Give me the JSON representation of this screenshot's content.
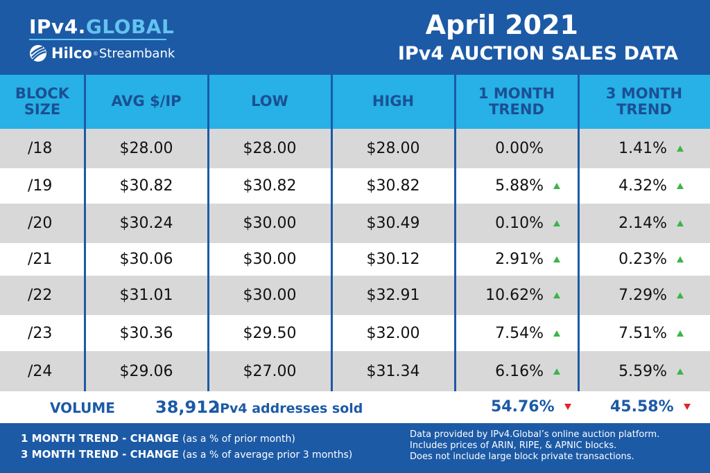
{
  "brand": {
    "name_prefix": "IPv4.",
    "name_accent": "GLOBAL",
    "partner_name": "Hilco",
    "partner_tm": "®",
    "partner_suffix": "Streambank"
  },
  "title": {
    "month": "April 2021",
    "subtitle": "IPv4 AUCTION SALES DATA"
  },
  "columns": [
    {
      "line1": "BLOCK",
      "line2": "SIZE"
    },
    {
      "line1": "AVG $/IP",
      "line2": ""
    },
    {
      "line1": "LOW",
      "line2": ""
    },
    {
      "line1": "HIGH",
      "line2": ""
    },
    {
      "line1": "1 MONTH",
      "line2": "TREND"
    },
    {
      "line1": "3 MONTH",
      "line2": "TREND"
    }
  ],
  "rows": [
    {
      "block": "/18",
      "avg": "$28.00",
      "low": "$28.00",
      "high": "$28.00",
      "trend_1m": "0.00%",
      "trend_1m_dir": "none",
      "trend_3m": "1.41%",
      "trend_3m_dir": "up"
    },
    {
      "block": "/19",
      "avg": "$30.82",
      "low": "$30.82",
      "high": "$30.82",
      "trend_1m": "5.88%",
      "trend_1m_dir": "up",
      "trend_3m": "4.32%",
      "trend_3m_dir": "up"
    },
    {
      "block": "/20",
      "avg": "$30.24",
      "low": "$30.00",
      "high": "$30.49",
      "trend_1m": "0.10%",
      "trend_1m_dir": "up",
      "trend_3m": "2.14%",
      "trend_3m_dir": "up"
    },
    {
      "block": "/21",
      "avg": "$30.06",
      "low": "$30.00",
      "high": "$30.12",
      "trend_1m": "2.91%",
      "trend_1m_dir": "up",
      "trend_3m": "0.23%",
      "trend_3m_dir": "up"
    },
    {
      "block": "/22",
      "avg": "$31.01",
      "low": "$30.00",
      "high": "$32.91",
      "trend_1m": "10.62%",
      "trend_1m_dir": "up",
      "trend_3m": "7.29%",
      "trend_3m_dir": "up"
    },
    {
      "block": "/23",
      "avg": "$30.36",
      "low": "$29.50",
      "high": "$32.00",
      "trend_1m": "7.54%",
      "trend_1m_dir": "up",
      "trend_3m": "7.51%",
      "trend_3m_dir": "up"
    },
    {
      "block": "/24",
      "avg": "$29.06",
      "low": "$27.00",
      "high": "$31.34",
      "trend_1m": "6.16%",
      "trend_1m_dir": "up",
      "trend_3m": "5.59%",
      "trend_3m_dir": "up"
    }
  ],
  "volume": {
    "label": "VOLUME",
    "count": "38,912",
    "text": "IPv4 addresses sold",
    "trend_1m": "54.76%",
    "trend_1m_dir": "down",
    "trend_3m": "45.58%",
    "trend_3m_dir": "down"
  },
  "footer": {
    "legend": [
      {
        "bold": "1 MONTH TREND - CHANGE",
        "paren": "(as a % of prior month)"
      },
      {
        "bold": "3 MONTH TREND - CHANGE",
        "paren": "(as a % of average prior 3 months)"
      }
    ],
    "notes": [
      "Data provided by IPv4.Global’s online auction platform.",
      "Includes prices of ARIN, RIPE, & APNIC blocks.",
      "Does not include large block private transactions."
    ]
  },
  "colors": {
    "brand_blue": "#1c5aa6",
    "header_cyan": "#27b1e6",
    "accent_light_blue": "#62c4ef",
    "row_gray": "#d9d8d8",
    "up_green": "#3bb54a",
    "down_red": "#e3232b"
  }
}
